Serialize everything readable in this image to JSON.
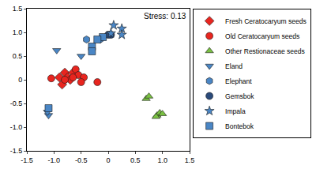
{
  "chart_data": {
    "type": "scatter",
    "annotations": [
      "Stress: 0.13"
    ],
    "xlim": [
      -1.5,
      1.5
    ],
    "xticks": [
      -1.5,
      {
        "value": -1,
        "label": "-1.0"
      },
      -0.5,
      0,
      0.5,
      {
        "value": 1,
        "label": "1.0"
      },
      1.5
    ],
    "ylim": [
      -1.5,
      1.5
    ],
    "yticks": [
      -1.5,
      {
        "value": -1,
        "label": "-1.0"
      },
      -0.5,
      0,
      0.5,
      {
        "value": 1,
        "label": "1.0"
      },
      1.5
    ],
    "grid": false,
    "legend": "right",
    "series": [
      {
        "name": "Fresh Ceratocaryum seeds",
        "color": "#e8251f",
        "marker": "diamond",
        "x": [
          -0.8,
          -0.75,
          -0.85,
          -0.7,
          -0.65,
          -0.9
        ],
        "y": [
          0.15,
          0.05,
          -0.1,
          0.0,
          0.15,
          0.05
        ]
      },
      {
        "name": "Old Ceratocaryum seeds",
        "color": "#e8251f",
        "marker": "circle",
        "x": [
          -1.05,
          -0.6,
          -0.55,
          -0.45,
          -0.5,
          -0.65,
          -0.2,
          -0.8
        ],
        "y": [
          0.03,
          0.22,
          0.1,
          0.05,
          -0.05,
          0.05,
          -0.05,
          0.0
        ]
      },
      {
        "name": "Other Restionaceae seeds",
        "color": "#7ac143",
        "marker": "triangle-up",
        "x": [
          0.7,
          0.75,
          0.9,
          0.95,
          1.0,
          0.88
        ],
        "y": [
          -0.4,
          -0.35,
          -0.75,
          -0.7,
          -0.72,
          -0.78
        ]
      },
      {
        "name": "Eland",
        "color": "#4a86c5",
        "marker": "triangle-down",
        "x": [
          -0.95,
          -1.1,
          -1.12,
          -0.5
        ],
        "y": [
          0.62,
          -0.75,
          -0.68,
          0.5
        ]
      },
      {
        "name": "Elephant",
        "color": "#4a86c5",
        "marker": "hexagon",
        "x": [
          -0.4,
          -0.15
        ],
        "y": [
          0.85,
          0.85
        ]
      },
      {
        "name": "Gemsbok",
        "color": "#2a4a7a",
        "marker": "circle",
        "x": [
          0.05,
          0.0
        ],
        "y": [
          0.95,
          0.95
        ]
      },
      {
        "name": "Impala",
        "color": "#4a86c5",
        "marker": "star",
        "x": [
          0.1,
          0.25,
          0.25,
          0.05
        ],
        "y": [
          1.15,
          1.08,
          0.95,
          0.98
        ]
      },
      {
        "name": "Bontebok",
        "color": "#4a86c5",
        "marker": "square",
        "x": [
          -1.1,
          -0.3,
          -0.3,
          -0.1,
          -0.2
        ],
        "y": [
          -0.6,
          0.7,
          0.6,
          0.9,
          0.85
        ]
      }
    ]
  }
}
